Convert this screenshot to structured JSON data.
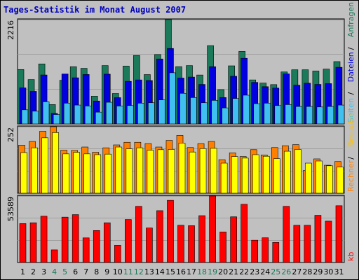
{
  "title": "Tages-Statistik im Monat August 2007",
  "chart_data": [
    {
      "type": "bar",
      "panel": "top",
      "ymax_label": "2216",
      "ylim": [
        0,
        2216
      ],
      "categories": [
        "1",
        "2",
        "3",
        "4",
        "5",
        "6",
        "7",
        "8",
        "9",
        "10",
        "11",
        "12",
        "13",
        "14",
        "15",
        "16",
        "17",
        "18",
        "19",
        "20",
        "21",
        "22",
        "23",
        "24",
        "25",
        "26",
        "27",
        "28",
        "29",
        "30",
        "31"
      ],
      "series": [
        {
          "name": "Anfragen",
          "color": "#1a7a5a",
          "values": [
            1155,
            942,
            1274,
            411,
            927,
            1215,
            1181,
            589,
            1239,
            646,
            1229,
            1455,
            1048,
            1474,
            2216,
            1216,
            1239,
            1039,
            1663,
            729,
            1234,
            1541,
            935,
            868,
            835,
            1104,
            1150,
            1150,
            1124,
            1164,
            1324
          ]
        },
        {
          "name": "Dateien",
          "color": "#0000e0",
          "values": [
            765,
            692,
            1040,
            222,
            1060,
            980,
            1050,
            487,
            1057,
            558,
            905,
            935,
            922,
            1380,
            1603,
            974,
            995,
            839,
            1215,
            560,
            1012,
            1395,
            882,
            791,
            761,
            1062,
            823,
            865,
            840,
            856,
            1203
          ]
        },
        {
          "name": "Seiten",
          "color": "#40c0f0",
          "values": [
            300,
            270,
            470,
            200,
            440,
            400,
            380,
            250,
            460,
            380,
            390,
            440,
            450,
            510,
            1087,
            650,
            560,
            450,
            500,
            340,
            540,
            610,
            430,
            440,
            390,
            410,
            370,
            370,
            360,
            370,
            400
          ]
        }
      ],
      "side_labels": [
        "Seiten",
        "Dateien",
        "Anfragen"
      ],
      "side_colors": [
        "#40c0f0",
        "#0000e0",
        "#1a7a5a"
      ]
    },
    {
      "type": "bar",
      "panel": "middle",
      "ymax_label": "252",
      "ylim": [
        0,
        252
      ],
      "categories": [
        "1",
        "2",
        "3",
        "4",
        "5",
        "6",
        "7",
        "8",
        "9",
        "10",
        "11",
        "12",
        "13",
        "14",
        "15",
        "16",
        "17",
        "18",
        "19",
        "20",
        "21",
        "22",
        "23",
        "24",
        "25",
        "26",
        "27",
        "28",
        "29",
        "30",
        "31"
      ],
      "series": [
        {
          "name": "Besuche",
          "color": "#ff8000",
          "values": [
            182,
            196,
            235,
            252,
            163,
            162,
            175,
            155,
            172,
            183,
            193,
            193,
            188,
            175,
            200,
            219,
            173,
            188,
            196,
            127,
            153,
            139,
            165,
            145,
            173,
            180,
            184,
            86,
            130,
            106,
            120
          ]
        },
        {
          "name": "Rechner",
          "color": "#ffff00",
          "values": [
            154,
            172,
            210,
            230,
            149,
            155,
            149,
            146,
            148,
            175,
            168,
            172,
            163,
            165,
            166,
            190,
            156,
            169,
            170,
            114,
            139,
            133,
            146,
            140,
            131,
            159,
            166,
            114,
            122,
            104,
            99
          ]
        }
      ],
      "side_labels": [
        "Rechner",
        "Besuche"
      ],
      "side_colors": [
        "#ff8000",
        "#ffc000"
      ]
    },
    {
      "type": "bar",
      "panel": "bottom",
      "ymax_label": "53589",
      "ylim": [
        0,
        53589
      ],
      "categories": [
        "1",
        "2",
        "3",
        "4",
        "5",
        "6",
        "7",
        "8",
        "9",
        "10",
        "11",
        "12",
        "13",
        "14",
        "15",
        "16",
        "17",
        "18",
        "19",
        "20",
        "21",
        "22",
        "23",
        "24",
        "25",
        "26",
        "27",
        "28",
        "29",
        "30",
        "31"
      ],
      "series": [
        {
          "name": "kb",
          "color": "#ff0000",
          "values": [
            31360,
            32020,
            37300,
            10190,
            36570,
            38580,
            19850,
            25780,
            32020,
            13880,
            34640,
            45280,
            27810,
            41790,
            50120,
            30040,
            29690,
            37750,
            53589,
            24600,
            36820,
            46910,
            17960,
            19920,
            16210,
            45280,
            30010,
            30010,
            38050,
            33330,
            45780
          ]
        }
      ],
      "side_labels": [
        "kb"
      ],
      "side_colors": [
        "#ff0000"
      ]
    }
  ],
  "x_labels": [
    {
      "text": "1",
      "color": "#000000"
    },
    {
      "text": "2",
      "color": "#000000"
    },
    {
      "text": "3",
      "color": "#000000"
    },
    {
      "text": "4",
      "color": "#1a7a5a"
    },
    {
      "text": "5",
      "color": "#1a7a5a"
    },
    {
      "text": "6",
      "color": "#000000"
    },
    {
      "text": "7",
      "color": "#000000"
    },
    {
      "text": "8",
      "color": "#000000"
    },
    {
      "text": "9",
      "color": "#000000"
    },
    {
      "text": "10",
      "color": "#000000"
    },
    {
      "text": "11",
      "color": "#1a7a5a"
    },
    {
      "text": "12",
      "color": "#1a7a5a"
    },
    {
      "text": "13",
      "color": "#000000"
    },
    {
      "text": "14",
      "color": "#000000"
    },
    {
      "text": "15",
      "color": "#000000"
    },
    {
      "text": "16",
      "color": "#000000"
    },
    {
      "text": "17",
      "color": "#000000"
    },
    {
      "text": "18",
      "color": "#1a7a5a"
    },
    {
      "text": "19",
      "color": "#1a7a5a"
    },
    {
      "text": "20",
      "color": "#000000"
    },
    {
      "text": "21",
      "color": "#000000"
    },
    {
      "text": "22",
      "color": "#000000"
    },
    {
      "text": "23",
      "color": "#000000"
    },
    {
      "text": "24",
      "color": "#000000"
    },
    {
      "text": "25",
      "color": "#1a7a5a"
    },
    {
      "text": "26",
      "color": "#1a7a5a"
    },
    {
      "text": "27",
      "color": "#000000"
    },
    {
      "text": "28",
      "color": "#000000"
    },
    {
      "text": "29",
      "color": "#000000"
    },
    {
      "text": "30",
      "color": "#000000"
    },
    {
      "text": "31",
      "color": "#000000"
    }
  ],
  "colors": {
    "background": "#c0c0c0",
    "title": "#0000c0",
    "gridline": "#a0a0a0"
  }
}
